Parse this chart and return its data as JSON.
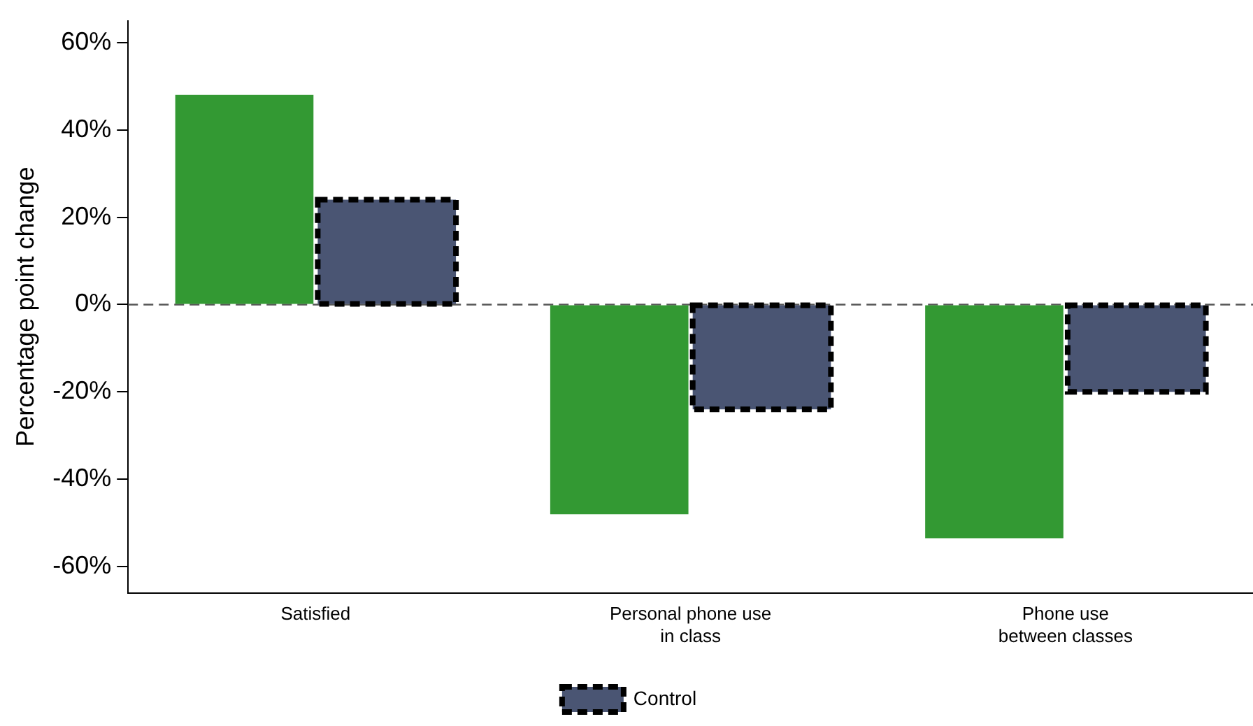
{
  "chart_data": {
    "type": "bar",
    "ylabel": "Percentage point change",
    "categories": [
      "Satisfied",
      "Personal phone use\nin class",
      "Phone use\nbetween classes"
    ],
    "series": [
      {
        "color": "#339933",
        "values": [
          48,
          -48,
          -53.5
        ]
      },
      {
        "name": "Control",
        "color": "#4a5573",
        "line_style": "dashed",
        "values": [
          24,
          -24,
          -20
        ]
      }
    ],
    "ylim": [
      -66,
      65
    ],
    "yticks": [
      {
        "value": -60,
        "label": "-60%"
      },
      {
        "value": -40,
        "label": "-40%"
      },
      {
        "value": -20,
        "label": "-20%"
      },
      {
        "value": 0,
        "label": "0%"
      },
      {
        "value": 20,
        "label": "20%"
      },
      {
        "value": 40,
        "label": "40%"
      },
      {
        "value": 60,
        "label": "60%"
      }
    ],
    "ref_lines": [
      {
        "axis": "y",
        "value": 0,
        "color": "#555555",
        "line_style": "dashed"
      }
    ],
    "grid": false,
    "legend": "bottom"
  }
}
